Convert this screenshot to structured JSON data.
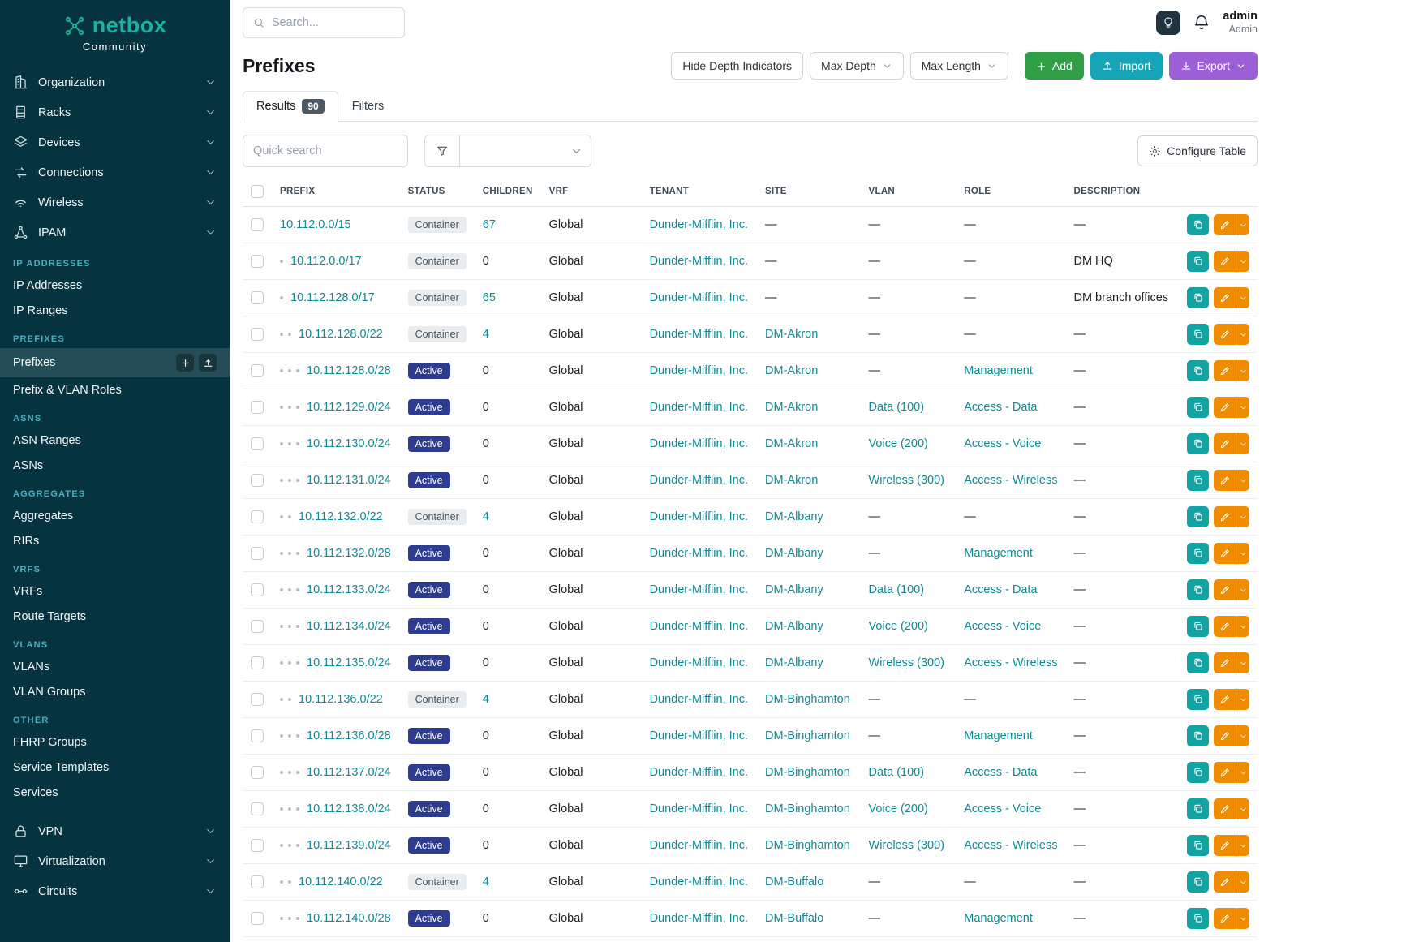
{
  "colors": {
    "sidebar_bg": "#05333f",
    "brand_teal": "#17b3a3",
    "link": "#0d8a96",
    "add_green": "#2f9e44",
    "import_teal": "#16a4b8",
    "export_purple": "#9c5fd6",
    "edit_orange": "#f08c00",
    "copy_teal": "#12a3a3",
    "active_badge": "#2d3c8e"
  },
  "sidebar": {
    "brand": "netbox",
    "brand_subtitle": "Community",
    "items": [
      {
        "type": "group",
        "icon": "buildings",
        "label": "Organization"
      },
      {
        "type": "group",
        "icon": "rack",
        "label": "Racks"
      },
      {
        "type": "group",
        "icon": "stack",
        "label": "Devices"
      },
      {
        "type": "group",
        "icon": "cable",
        "label": "Connections"
      },
      {
        "type": "group",
        "icon": "wifi",
        "label": "Wireless"
      },
      {
        "type": "group",
        "icon": "network",
        "label": "IPAM",
        "expanded": true
      },
      {
        "type": "section",
        "label": "IP ADDRESSES"
      },
      {
        "type": "link",
        "label": "IP Addresses"
      },
      {
        "type": "link",
        "label": "IP Ranges"
      },
      {
        "type": "section",
        "label": "PREFIXES"
      },
      {
        "type": "link",
        "label": "Prefixes",
        "active": true,
        "quick_actions": [
          "plus",
          "upload"
        ]
      },
      {
        "type": "link",
        "label": "Prefix & VLAN Roles"
      },
      {
        "type": "section",
        "label": "ASNS"
      },
      {
        "type": "link",
        "label": "ASN Ranges"
      },
      {
        "type": "link",
        "label": "ASNs"
      },
      {
        "type": "section",
        "label": "AGGREGATES"
      },
      {
        "type": "link",
        "label": "Aggregates"
      },
      {
        "type": "link",
        "label": "RIRs"
      },
      {
        "type": "section",
        "label": "VRFS"
      },
      {
        "type": "link",
        "label": "VRFs"
      },
      {
        "type": "link",
        "label": "Route Targets"
      },
      {
        "type": "section",
        "label": "VLANS"
      },
      {
        "type": "link",
        "label": "VLANs"
      },
      {
        "type": "link",
        "label": "VLAN Groups"
      },
      {
        "type": "section",
        "label": "OTHER"
      },
      {
        "type": "link",
        "label": "FHRP Groups"
      },
      {
        "type": "link",
        "label": "Service Templates"
      },
      {
        "type": "link",
        "label": "Services"
      },
      {
        "type": "group",
        "icon": "lock",
        "label": "VPN"
      },
      {
        "type": "group",
        "icon": "monitor",
        "label": "Virtualization"
      },
      {
        "type": "group",
        "icon": "circuit",
        "label": "Circuits"
      }
    ]
  },
  "topbar": {
    "search_placeholder": "Search...",
    "user_name": "admin",
    "user_role": "Admin"
  },
  "page": {
    "title": "Prefixes",
    "toolbar": {
      "hide_depth": "Hide Depth Indicators",
      "max_depth": "Max Depth",
      "max_length": "Max Length",
      "add": "Add",
      "import": "Import",
      "export": "Export"
    },
    "tabs": [
      {
        "label": "Results",
        "badge": "90"
      },
      {
        "label": "Filters"
      }
    ],
    "quick_search_placeholder": "Quick search",
    "configure_table": "Configure Table"
  },
  "table": {
    "columns": [
      "PREFIX",
      "STATUS",
      "CHILDREN",
      "VRF",
      "TENANT",
      "SITE",
      "VLAN",
      "ROLE",
      "DESCRIPTION"
    ],
    "rows": [
      {
        "depth": 0,
        "prefix": "10.112.0.0/15",
        "status": "Container",
        "children": "67",
        "vrf": "Global",
        "tenant": "Dunder-Mifflin, Inc.",
        "site": "—",
        "vlan": "—",
        "role": "—",
        "description": "—"
      },
      {
        "depth": 1,
        "prefix": "10.112.0.0/17",
        "status": "Container",
        "children": "0",
        "vrf": "Global",
        "tenant": "Dunder-Mifflin, Inc.",
        "site": "—",
        "vlan": "—",
        "role": "—",
        "description": "DM HQ"
      },
      {
        "depth": 1,
        "prefix": "10.112.128.0/17",
        "status": "Container",
        "children": "65",
        "vrf": "Global",
        "tenant": "Dunder-Mifflin, Inc.",
        "site": "—",
        "vlan": "—",
        "role": "—",
        "description": "DM branch offices"
      },
      {
        "depth": 2,
        "prefix": "10.112.128.0/22",
        "status": "Container",
        "children": "4",
        "vrf": "Global",
        "tenant": "Dunder-Mifflin, Inc.",
        "site": "DM-Akron",
        "vlan": "—",
        "role": "—",
        "description": "—"
      },
      {
        "depth": 3,
        "prefix": "10.112.128.0/28",
        "status": "Active",
        "children": "0",
        "vrf": "Global",
        "tenant": "Dunder-Mifflin, Inc.",
        "site": "DM-Akron",
        "vlan": "—",
        "role": "Management",
        "description": "—"
      },
      {
        "depth": 3,
        "prefix": "10.112.129.0/24",
        "status": "Active",
        "children": "0",
        "vrf": "Global",
        "tenant": "Dunder-Mifflin, Inc.",
        "site": "DM-Akron",
        "vlan": "Data (100)",
        "role": "Access - Data",
        "description": "—"
      },
      {
        "depth": 3,
        "prefix": "10.112.130.0/24",
        "status": "Active",
        "children": "0",
        "vrf": "Global",
        "tenant": "Dunder-Mifflin, Inc.",
        "site": "DM-Akron",
        "vlan": "Voice (200)",
        "role": "Access - Voice",
        "description": "—"
      },
      {
        "depth": 3,
        "prefix": "10.112.131.0/24",
        "status": "Active",
        "children": "0",
        "vrf": "Global",
        "tenant": "Dunder-Mifflin, Inc.",
        "site": "DM-Akron",
        "vlan": "Wireless (300)",
        "role": "Access - Wireless",
        "description": "—"
      },
      {
        "depth": 2,
        "prefix": "10.112.132.0/22",
        "status": "Container",
        "children": "4",
        "vrf": "Global",
        "tenant": "Dunder-Mifflin, Inc.",
        "site": "DM-Albany",
        "vlan": "—",
        "role": "—",
        "description": "—"
      },
      {
        "depth": 3,
        "prefix": "10.112.132.0/28",
        "status": "Active",
        "children": "0",
        "vrf": "Global",
        "tenant": "Dunder-Mifflin, Inc.",
        "site": "DM-Albany",
        "vlan": "—",
        "role": "Management",
        "description": "—"
      },
      {
        "depth": 3,
        "prefix": "10.112.133.0/24",
        "status": "Active",
        "children": "0",
        "vrf": "Global",
        "tenant": "Dunder-Mifflin, Inc.",
        "site": "DM-Albany",
        "vlan": "Data (100)",
        "role": "Access - Data",
        "description": "—"
      },
      {
        "depth": 3,
        "prefix": "10.112.134.0/24",
        "status": "Active",
        "children": "0",
        "vrf": "Global",
        "tenant": "Dunder-Mifflin, Inc.",
        "site": "DM-Albany",
        "vlan": "Voice (200)",
        "role": "Access - Voice",
        "description": "—"
      },
      {
        "depth": 3,
        "prefix": "10.112.135.0/24",
        "status": "Active",
        "children": "0",
        "vrf": "Global",
        "tenant": "Dunder-Mifflin, Inc.",
        "site": "DM-Albany",
        "vlan": "Wireless (300)",
        "role": "Access - Wireless",
        "description": "—"
      },
      {
        "depth": 2,
        "prefix": "10.112.136.0/22",
        "status": "Container",
        "children": "4",
        "vrf": "Global",
        "tenant": "Dunder-Mifflin, Inc.",
        "site": "DM-Binghamton",
        "vlan": "—",
        "role": "—",
        "description": "—"
      },
      {
        "depth": 3,
        "prefix": "10.112.136.0/28",
        "status": "Active",
        "children": "0",
        "vrf": "Global",
        "tenant": "Dunder-Mifflin, Inc.",
        "site": "DM-Binghamton",
        "vlan": "—",
        "role": "Management",
        "description": "—"
      },
      {
        "depth": 3,
        "prefix": "10.112.137.0/24",
        "status": "Active",
        "children": "0",
        "vrf": "Global",
        "tenant": "Dunder-Mifflin, Inc.",
        "site": "DM-Binghamton",
        "vlan": "Data (100)",
        "role": "Access - Data",
        "description": "—"
      },
      {
        "depth": 3,
        "prefix": "10.112.138.0/24",
        "status": "Active",
        "children": "0",
        "vrf": "Global",
        "tenant": "Dunder-Mifflin, Inc.",
        "site": "DM-Binghamton",
        "vlan": "Voice (200)",
        "role": "Access - Voice",
        "description": "—"
      },
      {
        "depth": 3,
        "prefix": "10.112.139.0/24",
        "status": "Active",
        "children": "0",
        "vrf": "Global",
        "tenant": "Dunder-Mifflin, Inc.",
        "site": "DM-Binghamton",
        "vlan": "Wireless (300)",
        "role": "Access - Wireless",
        "description": "—"
      },
      {
        "depth": 2,
        "prefix": "10.112.140.0/22",
        "status": "Container",
        "children": "4",
        "vrf": "Global",
        "tenant": "Dunder-Mifflin, Inc.",
        "site": "DM-Buffalo",
        "vlan": "—",
        "role": "—",
        "description": "—"
      },
      {
        "depth": 3,
        "prefix": "10.112.140.0/28",
        "status": "Active",
        "children": "0",
        "vrf": "Global",
        "tenant": "Dunder-Mifflin, Inc.",
        "site": "DM-Buffalo",
        "vlan": "—",
        "role": "Management",
        "description": "—"
      }
    ]
  }
}
